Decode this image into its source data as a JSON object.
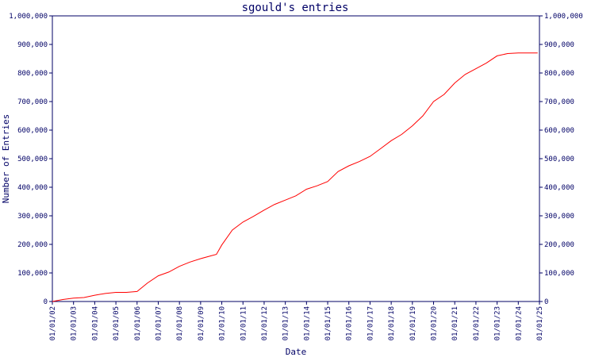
{
  "title": "sgould's entries",
  "chart_data": {
    "type": "line",
    "title": "sgould's entries",
    "xlabel": "Date",
    "ylabel": "Number of Entries",
    "x_ticks": [
      "01/01/02",
      "01/01/03",
      "01/01/04",
      "01/01/05",
      "01/01/06",
      "01/01/07",
      "01/01/08",
      "01/01/09",
      "01/01/10",
      "01/01/11",
      "01/01/12",
      "01/01/13",
      "01/01/14",
      "01/01/15",
      "01/01/16",
      "01/01/17",
      "01/01/18",
      "01/01/19",
      "01/01/20",
      "01/01/21",
      "01/01/22",
      "01/01/23",
      "01/01/24",
      "01/01/25"
    ],
    "y_ticks": [
      0,
      100000,
      200000,
      300000,
      400000,
      500000,
      600000,
      700000,
      800000,
      900000,
      1000000
    ],
    "y_tick_labels": [
      "0",
      "100,000",
      "200,000",
      "300,000",
      "400,000",
      "500,000",
      "600,000",
      "700,000",
      "800,000",
      "900,000",
      "1,000,000"
    ],
    "ylim": [
      0,
      1000000
    ],
    "xlim": [
      "2002-01-01",
      "2025-01-01"
    ],
    "grid": false,
    "right_axis_mirrors_left": true,
    "line_color": "#ff0000",
    "axis_color": "#000066",
    "series": [
      {
        "x": [
          "2002-01-01",
          "2002-07-01",
          "2003-01-01",
          "2003-07-01",
          "2004-01-01",
          "2004-07-01",
          "2005-01-01",
          "2005-07-01",
          "2006-01-01",
          "2006-07-01",
          "2007-01-01",
          "2007-07-01",
          "2008-01-01",
          "2008-07-01",
          "2009-01-01",
          "2009-07-01",
          "2009-10-01",
          "2010-01-01",
          "2010-07-01",
          "2011-01-01",
          "2011-07-01",
          "2012-01-01",
          "2012-07-01",
          "2013-01-01",
          "2013-07-01",
          "2014-01-01",
          "2014-07-01",
          "2015-01-01",
          "2015-07-01",
          "2016-01-01",
          "2016-07-01",
          "2017-01-01",
          "2017-07-01",
          "2018-01-01",
          "2018-07-01",
          "2019-01-01",
          "2019-07-01",
          "2020-01-01",
          "2020-07-01",
          "2021-01-01",
          "2021-07-01",
          "2022-01-01",
          "2022-07-01",
          "2023-01-01",
          "2023-07-01",
          "2024-01-01",
          "2024-07-01",
          "2024-12-01"
        ],
        "y": [
          0,
          7000,
          12000,
          14000,
          22000,
          28000,
          32000,
          32000,
          35000,
          65000,
          90000,
          103000,
          123000,
          138000,
          150000,
          160000,
          165000,
          198000,
          250000,
          278000,
          298000,
          320000,
          340000,
          355000,
          370000,
          393000,
          405000,
          420000,
          455000,
          475000,
          490000,
          508000,
          535000,
          563000,
          585000,
          615000,
          650000,
          700000,
          725000,
          765000,
          795000,
          815000,
          835000,
          860000,
          868000,
          870000,
          870000,
          870000
        ]
      }
    ]
  }
}
